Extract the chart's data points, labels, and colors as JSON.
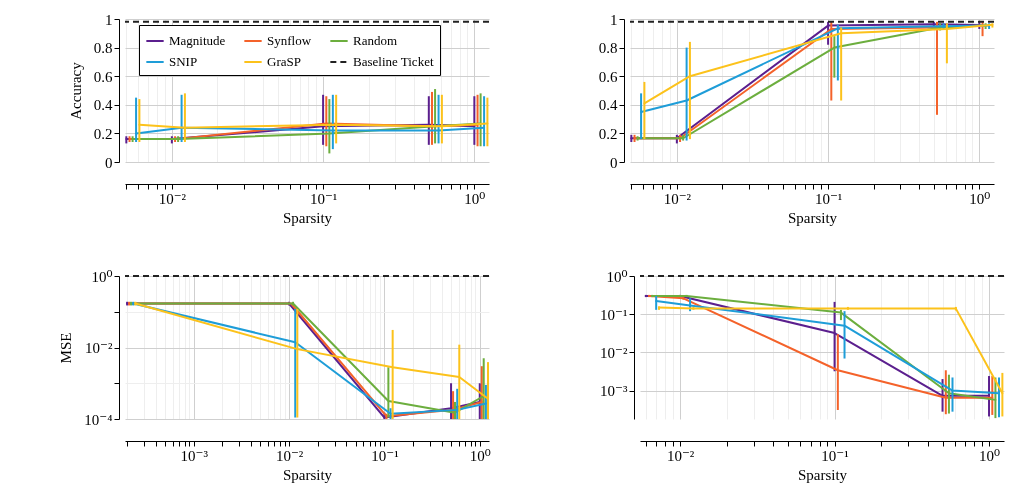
{
  "chart_data": [
    {
      "type": "line",
      "ylabel": "Accuracy",
      "xlabel": "Sparsity",
      "log": "x",
      "grid": true,
      "legend": "top",
      "xlim": [
        0.0049,
        1.25
      ],
      "ylim": [
        0,
        1
      ],
      "yticks": [
        0,
        0.2,
        0.4,
        0.6,
        0.8,
        1
      ],
      "xticks": [
        {
          "value": 0.005,
          "label": null
        },
        {
          "value": 0.006,
          "label": null
        },
        {
          "value": 0.007,
          "label": null
        },
        {
          "value": 0.008,
          "label": null
        },
        {
          "value": 0.009,
          "label": null
        },
        {
          "value": 0.01,
          "label": "10⁻²"
        },
        {
          "value": 0.02,
          "label": null
        },
        {
          "value": 0.03,
          "label": null
        },
        {
          "value": 0.04,
          "label": null
        },
        {
          "value": 0.05,
          "label": null
        },
        {
          "value": 0.06,
          "label": null
        },
        {
          "value": 0.07,
          "label": null
        },
        {
          "value": 0.08,
          "label": null
        },
        {
          "value": 0.09,
          "label": null
        },
        {
          "value": 0.1,
          "label": "10⁻¹"
        },
        {
          "value": 0.2,
          "label": null
        },
        {
          "value": 0.3,
          "label": null
        },
        {
          "value": 0.4,
          "label": null
        },
        {
          "value": 0.5,
          "label": null
        },
        {
          "value": 0.6,
          "label": null
        },
        {
          "value": 0.7,
          "label": null
        },
        {
          "value": 0.8,
          "label": null
        },
        {
          "value": 0.9,
          "label": null
        },
        {
          "value": 1,
          "label": "10⁰"
        }
      ],
      "ref_lines": [
        {
          "axis": "y",
          "value": 0.98,
          "label": "Baseline Ticket",
          "color": "#222222",
          "line_style": "dashed"
        }
      ],
      "series": [
        {
          "name": "Magnitude",
          "color": "#5b1f8e",
          "x": [
            0.005,
            0.01,
            0.1,
            0.5,
            1
          ],
          "values": [
            0.16,
            0.16,
            0.25,
            0.26,
            0.25
          ],
          "errors": [
            [
              0.13,
              0.18
            ],
            [
              0.13,
              0.18
            ],
            [
              0.12,
              0.47
            ],
            [
              0.12,
              0.46
            ],
            [
              0.12,
              0.46
            ]
          ]
        },
        {
          "name": "Synflow",
          "color": "#f4622a",
          "x": [
            0.00525,
            0.0105,
            0.105,
            0.525,
            1.05
          ],
          "values": [
            0.16,
            0.16,
            0.27,
            0.25,
            0.26
          ],
          "errors": [
            [
              0.14,
              0.18
            ],
            [
              0.14,
              0.18
            ],
            [
              0.11,
              0.46
            ],
            [
              0.12,
              0.49
            ],
            [
              0.11,
              0.47
            ]
          ]
        },
        {
          "name": "Random",
          "color": "#6cae3e",
          "x": [
            0.0055,
            0.011,
            0.11,
            0.55,
            1.1
          ],
          "values": [
            0.16,
            0.16,
            0.2,
            0.25,
            0.27
          ],
          "errors": [
            [
              0.14,
              0.18
            ],
            [
              0.14,
              0.18
            ],
            [
              0.06,
              0.44
            ],
            [
              0.13,
              0.51
            ],
            [
              0.11,
              0.48
            ]
          ]
        },
        {
          "name": "SNIP",
          "color": "#1e9dd8",
          "x": [
            0.0058,
            0.0116,
            0.116,
            0.58,
            1.16
          ],
          "values": [
            0.2,
            0.24,
            0.22,
            0.22,
            0.24
          ],
          "errors": [
            [
              0.14,
              0.45
            ],
            [
              0.14,
              0.47
            ],
            [
              0.09,
              0.47
            ],
            [
              0.13,
              0.47
            ],
            [
              0.11,
              0.46
            ]
          ]
        },
        {
          "name": "GraSP",
          "color": "#fcc21b",
          "x": [
            0.0061,
            0.0122,
            0.122,
            0.61,
            1.22
          ],
          "values": [
            0.26,
            0.24,
            0.26,
            0.25,
            0.27
          ],
          "errors": [
            [
              0.14,
              0.44
            ],
            [
              0.14,
              0.48
            ],
            [
              0.13,
              0.47
            ],
            [
              0.13,
              0.47
            ],
            [
              0.11,
              0.45
            ]
          ]
        }
      ]
    },
    {
      "type": "line",
      "xlabel": "Sparsity",
      "log": "x",
      "grid": true,
      "xlim": [
        0.0049,
        1.25
      ],
      "ylim": [
        0,
        1
      ],
      "yticks": [
        0,
        0.2,
        0.4,
        0.6,
        0.8,
        1
      ],
      "xticks": [
        {
          "value": 0.005,
          "label": null
        },
        {
          "value": 0.006,
          "label": null
        },
        {
          "value": 0.007,
          "label": null
        },
        {
          "value": 0.008,
          "label": null
        },
        {
          "value": 0.009,
          "label": null
        },
        {
          "value": 0.01,
          "label": "10⁻²"
        },
        {
          "value": 0.02,
          "label": null
        },
        {
          "value": 0.03,
          "label": null
        },
        {
          "value": 0.04,
          "label": null
        },
        {
          "value": 0.05,
          "label": null
        },
        {
          "value": 0.06,
          "label": null
        },
        {
          "value": 0.07,
          "label": null
        },
        {
          "value": 0.08,
          "label": null
        },
        {
          "value": 0.09,
          "label": null
        },
        {
          "value": 0.1,
          "label": "10⁻¹"
        },
        {
          "value": 0.2,
          "label": null
        },
        {
          "value": 0.3,
          "label": null
        },
        {
          "value": 0.4,
          "label": null
        },
        {
          "value": 0.5,
          "label": null
        },
        {
          "value": 0.6,
          "label": null
        },
        {
          "value": 0.7,
          "label": null
        },
        {
          "value": 0.8,
          "label": null
        },
        {
          "value": 0.9,
          "label": null
        },
        {
          "value": 1,
          "label": "10⁰"
        }
      ],
      "ref_lines": [
        {
          "axis": "y",
          "value": 0.98,
          "color": "#222222",
          "line_style": "dashed"
        }
      ],
      "series": [
        {
          "color": "#5b1f8e",
          "x": [
            0.005,
            0.01,
            0.1,
            0.5,
            1
          ],
          "values": [
            0.166,
            0.166,
            0.954,
            0.963,
            0.958
          ],
          "errors": [
            [
              0.14,
              0.19
            ],
            [
              0.13,
              0.19
            ],
            [
              0.82,
              0.98
            ],
            [
              0.94,
              0.98
            ],
            [
              0.93,
              0.98
            ]
          ]
        },
        {
          "color": "#f4622a",
          "x": [
            0.00525,
            0.0105,
            0.105,
            0.525,
            1.05
          ],
          "values": [
            0.166,
            0.166,
            0.93,
            0.94,
            0.955
          ],
          "errors": [
            [
              0.14,
              0.19
            ],
            [
              0.14,
              0.19
            ],
            [
              0.43,
              0.98
            ],
            [
              0.33,
              0.98
            ],
            [
              0.88,
              0.98
            ]
          ]
        },
        {
          "color": "#6cae3e",
          "x": [
            0.0055,
            0.011,
            0.11,
            0.55,
            1.1
          ],
          "values": [
            0.166,
            0.166,
            0.8,
            0.94,
            0.955
          ],
          "errors": [
            [
              0.15,
              0.18
            ],
            [
              0.15,
              0.19
            ],
            [
              0.59,
              0.88
            ],
            [
              0.92,
              0.97
            ],
            [
              0.93,
              0.97
            ]
          ]
        },
        {
          "color": "#1e9dd8",
          "x": [
            0.0058,
            0.0116,
            0.116,
            0.58,
            1.16
          ],
          "values": [
            0.35,
            0.43,
            0.935,
            0.95,
            0.955
          ],
          "errors": [
            [
              0.16,
              0.48
            ],
            [
              0.15,
              0.8
            ],
            [
              0.57,
              0.96
            ],
            [
              0.93,
              0.97
            ],
            [
              0.93,
              0.97
            ]
          ]
        },
        {
          "color": "#fcc21b",
          "x": [
            0.0061,
            0.0122,
            0.122,
            0.61,
            1.22
          ],
          "values": [
            0.41,
            0.6,
            0.9,
            0.93,
            0.96
          ],
          "errors": [
            [
              0.16,
              0.56
            ],
            [
              0.16,
              0.84
            ],
            [
              0.43,
              0.94
            ],
            [
              0.69,
              0.97
            ],
            [
              0.94,
              0.97
            ]
          ]
        }
      ]
    },
    {
      "type": "line",
      "ylabel": "MSE",
      "xlabel": "Sparsity",
      "log": "xy",
      "grid": true,
      "xlim": [
        0.00019,
        1.25
      ],
      "ylim": [
        0.0001,
        1
      ],
      "yticks": [
        {
          "value": 0.0001,
          "label": "10⁻⁴"
        },
        {
          "value": 0.001,
          "label": null
        },
        {
          "value": 0.01,
          "label": "10⁻²"
        },
        {
          "value": 0.1,
          "label": null
        },
        {
          "value": 1,
          "label": "10⁰"
        }
      ],
      "xticks": [
        {
          "value": 0.0002,
          "label": null
        },
        {
          "value": 0.0003,
          "label": null
        },
        {
          "value": 0.0004,
          "label": null
        },
        {
          "value": 0.0005,
          "label": null
        },
        {
          "value": 0.0006,
          "label": null
        },
        {
          "value": 0.0007,
          "label": null
        },
        {
          "value": 0.0008,
          "label": null
        },
        {
          "value": 0.0009,
          "label": null
        },
        {
          "value": 0.001,
          "label": "10⁻³"
        },
        {
          "value": 0.002,
          "label": null
        },
        {
          "value": 0.003,
          "label": null
        },
        {
          "value": 0.004,
          "label": null
        },
        {
          "value": 0.005,
          "label": null
        },
        {
          "value": 0.006,
          "label": null
        },
        {
          "value": 0.007,
          "label": null
        },
        {
          "value": 0.008,
          "label": null
        },
        {
          "value": 0.009,
          "label": null
        },
        {
          "value": 0.01,
          "label": "10⁻²"
        },
        {
          "value": 0.02,
          "label": null
        },
        {
          "value": 0.03,
          "label": null
        },
        {
          "value": 0.04,
          "label": null
        },
        {
          "value": 0.05,
          "label": null
        },
        {
          "value": 0.06,
          "label": null
        },
        {
          "value": 0.07,
          "label": null
        },
        {
          "value": 0.08,
          "label": null
        },
        {
          "value": 0.09,
          "label": null
        },
        {
          "value": 0.1,
          "label": "10⁻¹"
        },
        {
          "value": 0.2,
          "label": null
        },
        {
          "value": 0.3,
          "label": null
        },
        {
          "value": 0.4,
          "label": null
        },
        {
          "value": 0.5,
          "label": null
        },
        {
          "value": 0.6,
          "label": null
        },
        {
          "value": 0.7,
          "label": null
        },
        {
          "value": 0.8,
          "label": null
        },
        {
          "value": 0.9,
          "label": null
        },
        {
          "value": 1,
          "label": "10⁰"
        }
      ],
      "ref_lines": [
        {
          "axis": "y",
          "value": 1,
          "color": "#222222",
          "line_style": "dashed"
        }
      ],
      "series": [
        {
          "color": "#5b1f8e",
          "x": [
            0.0002,
            0.01,
            0.1,
            0.5,
            1
          ],
          "values": [
            0.17,
            0.17,
            0.00011,
            0.0002,
            0.0003
          ],
          "errors": [
            [
              0.15,
              0.19
            ],
            [
              0.15,
              0.19
            ],
            [
              0.0001,
              0.00015
            ],
            [
              0.0001,
              0.001
            ],
            [
              0.0001,
              0.001
            ]
          ]
        },
        {
          "color": "#f4622a",
          "x": [
            0.00021,
            0.0105,
            0.105,
            0.525,
            1.05
          ],
          "values": [
            0.17,
            0.17,
            0.00012,
            0.00018,
            0.0003
          ],
          "errors": [
            [
              0.15,
              0.19
            ],
            null,
            [
              0.0001,
              0.00014
            ],
            [
              0.0001,
              0.0006
            ],
            [
              0.0001,
              0.003
            ]
          ]
        },
        {
          "color": "#6cae3e",
          "x": [
            0.00022,
            0.011,
            0.11,
            0.55,
            1.1
          ],
          "values": [
            0.17,
            0.17,
            0.00032,
            0.00015,
            0.00044
          ],
          "errors": [
            [
              0.15,
              0.19
            ],
            [
              0.15,
              0.19
            ],
            [
              0.00011,
              0.0028
            ],
            [
              0.0001,
              0.0003
            ],
            [
              0.0001,
              0.005
            ]
          ]
        },
        {
          "color": "#1e9dd8",
          "x": [
            0.000232,
            0.0116,
            0.116,
            0.58,
            1.16
          ],
          "values": [
            0.17,
            0.014,
            0.00014,
            0.00018,
            0.00027
          ],
          "errors": [
            [
              0.15,
              0.19
            ],
            [
              0.00011,
              0.12
            ],
            [
              0.0001,
              0.0002
            ],
            [
              0.0001,
              0.0007
            ],
            [
              0.0001,
              0.0009
            ]
          ]
        },
        {
          "color": "#fcc21b",
          "x": [
            0.000244,
            0.0122,
            0.122,
            0.61,
            1.22
          ],
          "values": [
            0.17,
            0.009,
            0.0028,
            0.0015,
            0.00037
          ],
          "errors": [
            [
              0.15,
              0.19
            ],
            [
              0.00011,
              0.12
            ],
            [
              0.0001,
              0.031
            ],
            [
              0.0001,
              0.012
            ],
            [
              0.0001,
              0.0039
            ]
          ]
        }
      ]
    },
    {
      "type": "line",
      "xlabel": "Sparsity",
      "log": "xy",
      "grid": true,
      "xlim": [
        0.0055,
        1.25
      ],
      "ylim": [
        0.00018,
        1
      ],
      "yticks": [
        {
          "value": 0.001,
          "label": "10⁻³"
        },
        {
          "value": 0.01,
          "label": "10⁻²"
        },
        {
          "value": 0.1,
          "label": "10⁻¹"
        },
        {
          "value": 1,
          "label": "10⁰"
        }
      ],
      "xticks": [
        {
          "value": 0.006,
          "label": null
        },
        {
          "value": 0.007,
          "label": null
        },
        {
          "value": 0.008,
          "label": null
        },
        {
          "value": 0.009,
          "label": null
        },
        {
          "value": 0.01,
          "label": "10⁻²"
        },
        {
          "value": 0.02,
          "label": null
        },
        {
          "value": 0.03,
          "label": null
        },
        {
          "value": 0.04,
          "label": null
        },
        {
          "value": 0.05,
          "label": null
        },
        {
          "value": 0.06,
          "label": null
        },
        {
          "value": 0.07,
          "label": null
        },
        {
          "value": 0.08,
          "label": null
        },
        {
          "value": 0.09,
          "label": null
        },
        {
          "value": 0.1,
          "label": "10⁻¹"
        },
        {
          "value": 0.2,
          "label": null
        },
        {
          "value": 0.3,
          "label": null
        },
        {
          "value": 0.4,
          "label": null
        },
        {
          "value": 0.5,
          "label": null
        },
        {
          "value": 0.6,
          "label": null
        },
        {
          "value": 0.7,
          "label": null
        },
        {
          "value": 0.8,
          "label": null
        },
        {
          "value": 0.9,
          "label": null
        },
        {
          "value": 1,
          "label": "10⁰"
        }
      ],
      "ref_lines": [
        {
          "axis": "y",
          "value": 1,
          "color": "#222222",
          "line_style": "dashed"
        }
      ],
      "series": [
        {
          "color": "#5b1f8e",
          "x": [
            0.006,
            0.01,
            0.1,
            0.5,
            1
          ],
          "values": [
            0.3,
            0.3,
            0.032,
            0.00073,
            0.00073
          ],
          "errors": [
            [
              0.28,
              0.32
            ],
            [
              0.28,
              0.32
            ],
            [
              0.0032,
              0.21
            ],
            [
              0.00028,
              0.002
            ],
            [
              0.00021,
              0.0024
            ]
          ]
        },
        {
          "color": "#f4622a",
          "x": [
            0.0063,
            0.0105,
            0.105,
            0.525,
            1.05
          ],
          "values": [
            0.3,
            0.26,
            0.0034,
            0.00065,
            0.00065
          ],
          "errors": [
            [
              0.28,
              0.32
            ],
            [
              0.24,
              0.28
            ],
            [
              0.00031,
              0.03
            ],
            [
              0.00024,
              0.0034
            ],
            [
              0.00023,
              0.0024
            ]
          ]
        },
        {
          "color": "#6cae3e",
          "x": [
            0.0066,
            0.011,
            0.11,
            0.55,
            1.1
          ],
          "values": [
            0.3,
            0.3,
            0.11,
            0.00085,
            0.00057
          ],
          "errors": [
            [
              0.28,
              0.32
            ],
            [
              0.28,
              0.32
            ],
            [
              0.07,
              0.13
            ],
            [
              0.00025,
              0.0026
            ],
            [
              0.00019,
              0.0022
            ]
          ]
        },
        {
          "color": "#1e9dd8",
          "x": [
            0.007,
            0.0116,
            0.116,
            0.58,
            1.16
          ],
          "values": [
            0.22,
            0.17,
            0.05,
            0.001,
            0.00085
          ],
          "errors": [
            [
              0.13,
              0.3
            ],
            [
              0.12,
              0.26
            ],
            [
              0.0069,
              0.12
            ],
            [
              0.00028,
              0.0022
            ],
            [
              0.0002,
              0.0022
            ]
          ]
        },
        {
          "color": "#fcc21b",
          "x": [
            0.0073,
            0.0122,
            0.122,
            0.61,
            1.22
          ],
          "values": [
            0.15,
            0.14,
            0.14,
            0.14,
            0.00085
          ],
          "errors": [
            [
              0.13,
              0.16
            ],
            [
              0.13,
              0.155
            ],
            [
              0.13,
              0.155
            ],
            [
              0.125,
              0.155
            ],
            [
              0.00021,
              0.0029
            ]
          ]
        }
      ]
    }
  ]
}
